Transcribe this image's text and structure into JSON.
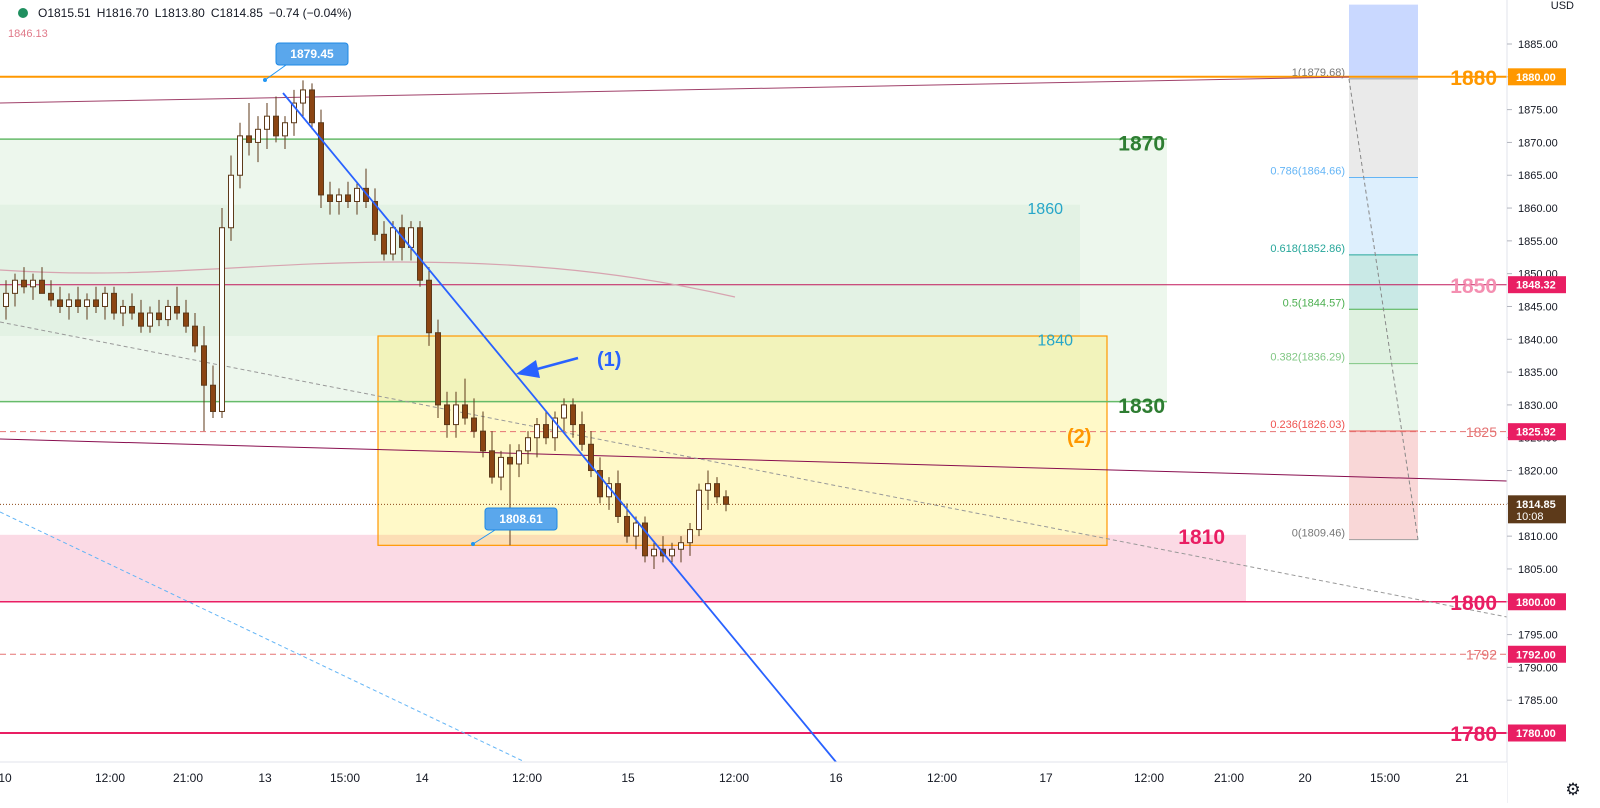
{
  "header": {
    "open": "O1815.51",
    "high": "H1816.70",
    "low": "L1813.80",
    "close": "C1814.85",
    "change": "−0.74 (−0.04%)",
    "prev_close": "1846.13",
    "currency": "USD",
    "settings_icon": "gear-icon"
  },
  "chart_data": {
    "type": "candlestick",
    "symbol_currency": "USD",
    "y_range": [
      1777,
      1891
    ],
    "y_ticks": [
      "1885.00",
      "1880.00",
      "1875.00",
      "1870.00",
      "1865.00",
      "1860.00",
      "1855.00",
      "1850.00",
      "1845.00",
      "1840.00",
      "1835.00",
      "1830.00",
      "1825.00",
      "1820.00",
      "1815.00",
      "1810.00",
      "1805.00",
      "1800.00",
      "1795.00",
      "1790.00",
      "1785.00",
      "1780.00"
    ],
    "x_ticks": [
      "10",
      "12:00",
      "21:00",
      "13",
      "15:00",
      "14",
      "12:00",
      "15",
      "12:00",
      "16",
      "12:00",
      "17",
      "12:00",
      "21:00",
      "20",
      "15:00",
      "21"
    ],
    "price_badges": [
      {
        "label": "1880.00",
        "price": 1880.0,
        "color": "#ff9800"
      },
      {
        "label": "1848.32",
        "price": 1848.32,
        "color": "#e91e63"
      },
      {
        "label": "1825.92",
        "price": 1825.92,
        "color": "#e91e63"
      },
      {
        "label": "1814.85",
        "sub": "10:08",
        "price": 1814.85,
        "color": "#5d3a1a"
      },
      {
        "label": "1800.00",
        "price": 1800.0,
        "color": "#e91e63"
      },
      {
        "label": "1792.00",
        "price": 1792.0,
        "color": "#e91e63"
      },
      {
        "label": "1780.00",
        "price": 1780.0,
        "color": "#e91e63"
      }
    ],
    "level_labels": [
      {
        "text": "1880",
        "price": 1880,
        "color": "#ff9800"
      },
      {
        "text": "1870",
        "price": 1870,
        "color": "#2e7d32"
      },
      {
        "text": "1860",
        "price": 1860,
        "color": "#26a6c9"
      },
      {
        "text": "1850",
        "price": 1848.3,
        "color": "#f48fb1"
      },
      {
        "text": "1840",
        "price": 1840,
        "color": "#26a6c9"
      },
      {
        "text": "1830",
        "price": 1830,
        "color": "#2e7d32"
      },
      {
        "text": "1825",
        "price": 1825.9,
        "color": "#e57373"
      },
      {
        "text": "1810",
        "price": 1810,
        "color": "#e91e63"
      },
      {
        "text": "1800",
        "price": 1800,
        "color": "#e91e63"
      },
      {
        "text": "1792",
        "price": 1792,
        "color": "#e57373"
      },
      {
        "text": "1780",
        "price": 1780,
        "color": "#e91e63"
      }
    ],
    "fib_levels": [
      {
        "label": "1(1879.68)",
        "price": 1879.68
      },
      {
        "label": "0.786(1864.66)",
        "price": 1864.66
      },
      {
        "label": "0.618(1852.86)",
        "price": 1852.86
      },
      {
        "label": "0.5(1844.57)",
        "price": 1844.57
      },
      {
        "label": "0.382(1836.29)",
        "price": 1836.29
      },
      {
        "label": "0.236(1826.03)",
        "price": 1826.03
      },
      {
        "label": "0(1809.46)",
        "price": 1809.46
      }
    ],
    "callouts": [
      {
        "label": "1879.45",
        "price": 1879.45
      },
      {
        "label": "1808.61",
        "price": 1808.61
      }
    ],
    "annotations": [
      {
        "text": "(1)",
        "color": "#2962ff"
      },
      {
        "text": "(2)",
        "color": "#ff9800"
      }
    ],
    "candles": [
      [
        1845,
        1849,
        1843,
        1847
      ],
      [
        1847,
        1850,
        1845,
        1849
      ],
      [
        1849,
        1851,
        1847,
        1848
      ],
      [
        1848,
        1850,
        1846,
        1849
      ],
      [
        1849,
        1851,
        1847,
        1847
      ],
      [
        1847,
        1849,
        1845,
        1846
      ],
      [
        1846,
        1848,
        1844,
        1845
      ],
      [
        1845,
        1847,
        1843,
        1846
      ],
      [
        1846,
        1848,
        1844,
        1845
      ],
      [
        1845,
        1847,
        1843,
        1846
      ],
      [
        1846,
        1848,
        1844,
        1845
      ],
      [
        1845,
        1848,
        1843,
        1847
      ],
      [
        1847,
        1848,
        1843,
        1844
      ],
      [
        1844,
        1846,
        1842,
        1845
      ],
      [
        1845,
        1847,
        1843,
        1844
      ],
      [
        1844,
        1846,
        1841,
        1842
      ],
      [
        1842,
        1845,
        1841,
        1844
      ],
      [
        1844,
        1846,
        1842,
        1843
      ],
      [
        1843,
        1846,
        1842,
        1845
      ],
      [
        1845,
        1848,
        1843,
        1844
      ],
      [
        1844,
        1846,
        1841,
        1842
      ],
      [
        1842,
        1844,
        1838,
        1839
      ],
      [
        1839,
        1842,
        1826,
        1833
      ],
      [
        1833,
        1836,
        1828,
        1829
      ],
      [
        1829,
        1860,
        1828,
        1857
      ],
      [
        1857,
        1868,
        1855,
        1865
      ],
      [
        1865,
        1873,
        1863,
        1871
      ],
      [
        1871,
        1876,
        1868,
        1870
      ],
      [
        1870,
        1874,
        1867,
        1872
      ],
      [
        1872,
        1876,
        1869,
        1874
      ],
      [
        1874,
        1877,
        1870,
        1871
      ],
      [
        1871,
        1874,
        1869,
        1873
      ],
      [
        1873,
        1878,
        1871,
        1876
      ],
      [
        1876,
        1879.45,
        1874,
        1878
      ],
      [
        1878,
        1879,
        1872,
        1873
      ],
      [
        1873,
        1875,
        1860,
        1862
      ],
      [
        1862,
        1864,
        1859,
        1861
      ],
      [
        1861,
        1863,
        1859,
        1862
      ],
      [
        1862,
        1864,
        1860,
        1861
      ],
      [
        1861,
        1864,
        1859,
        1863
      ],
      [
        1863,
        1866,
        1860,
        1861
      ],
      [
        1861,
        1863,
        1855,
        1856
      ],
      [
        1856,
        1858,
        1852,
        1853
      ],
      [
        1853,
        1858,
        1852,
        1857
      ],
      [
        1857,
        1859,
        1852,
        1854
      ],
      [
        1854,
        1858,
        1852,
        1857
      ],
      [
        1857,
        1858,
        1848,
        1849
      ],
      [
        1849,
        1851,
        1839,
        1841
      ],
      [
        1841,
        1843,
        1828,
        1830
      ],
      [
        1830,
        1832,
        1825,
        1827
      ],
      [
        1827,
        1832,
        1825,
        1830
      ],
      [
        1830,
        1834,
        1827,
        1828
      ],
      [
        1828,
        1831,
        1825,
        1826
      ],
      [
        1826,
        1829,
        1822,
        1823
      ],
      [
        1823,
        1826,
        1818,
        1819
      ],
      [
        1819,
        1823,
        1817,
        1822
      ],
      [
        1822,
        1824,
        1808.61,
        1821
      ],
      [
        1821,
        1824,
        1819,
        1823
      ],
      [
        1823,
        1826,
        1821,
        1825
      ],
      [
        1825,
        1828,
        1822,
        1827
      ],
      [
        1827,
        1829,
        1824,
        1825
      ],
      [
        1825,
        1829,
        1823,
        1828
      ],
      [
        1828,
        1831,
        1826,
        1830
      ],
      [
        1830,
        1831,
        1825,
        1827
      ],
      [
        1827,
        1829,
        1823,
        1824
      ],
      [
        1824,
        1826,
        1819,
        1820
      ],
      [
        1820,
        1822,
        1815,
        1816
      ],
      [
        1816,
        1819,
        1814,
        1818
      ],
      [
        1818,
        1820,
        1812,
        1813
      ],
      [
        1813,
        1815,
        1809,
        1810
      ],
      [
        1810,
        1813,
        1808,
        1812
      ],
      [
        1812,
        1813,
        1806,
        1807
      ],
      [
        1807,
        1809,
        1805,
        1808
      ],
      [
        1808,
        1810,
        1806,
        1807
      ],
      [
        1807,
        1809,
        1806,
        1808
      ],
      [
        1808,
        1810,
        1806,
        1809
      ],
      [
        1809,
        1812,
        1807,
        1811
      ],
      [
        1811,
        1818,
        1810,
        1817
      ],
      [
        1817,
        1820,
        1814,
        1818
      ],
      [
        1818,
        1819,
        1815,
        1816
      ],
      [
        1816,
        1817,
        1813.8,
        1814.85
      ]
    ]
  }
}
